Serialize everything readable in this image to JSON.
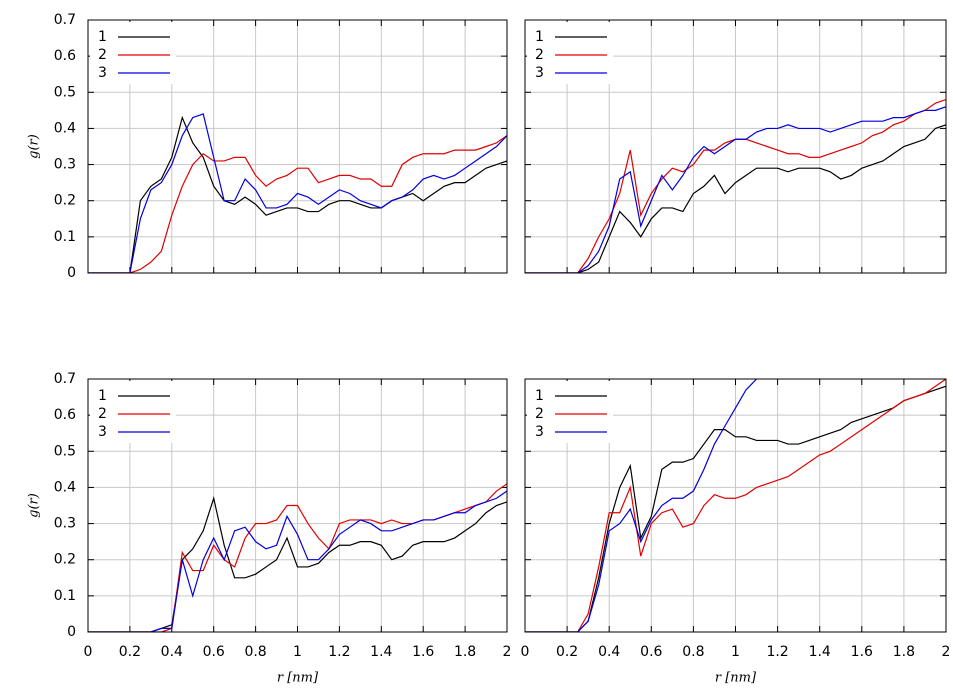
{
  "chart_data": [
    {
      "type": "line",
      "ylabel": "g(r)",
      "legend": "upper left",
      "grid": true,
      "show_xtick_labels": false,
      "show_ytick_labels": true,
      "xlim": [
        0,
        2
      ],
      "ylim": [
        0,
        0.7
      ],
      "xticks": [
        0,
        0.2,
        0.4,
        0.6,
        0.8,
        1,
        1.2,
        1.4,
        1.6,
        1.8,
        2
      ],
      "yticks": [
        0,
        0.1,
        0.2,
        0.3,
        0.4,
        0.5,
        0.6,
        0.7
      ],
      "x": [
        0,
        0.05,
        0.1,
        0.15,
        0.2,
        0.25,
        0.3,
        0.35,
        0.4,
        0.45,
        0.5,
        0.55,
        0.6,
        0.65,
        0.7,
        0.75,
        0.8,
        0.85,
        0.9,
        0.95,
        1,
        1.05,
        1.1,
        1.15,
        1.2,
        1.25,
        1.3,
        1.35,
        1.4,
        1.45,
        1.5,
        1.55,
        1.6,
        1.65,
        1.7,
        1.75,
        1.8,
        1.85,
        1.9,
        1.95,
        2
      ],
      "series": [
        {
          "name": "1",
          "color": "#000000",
          "values": [
            0,
            0,
            0,
            0,
            0,
            0.2,
            0.24,
            0.26,
            0.32,
            0.43,
            0.36,
            0.32,
            0.24,
            0.2,
            0.19,
            0.21,
            0.19,
            0.16,
            0.17,
            0.18,
            0.18,
            0.17,
            0.17,
            0.19,
            0.2,
            0.2,
            0.19,
            0.18,
            0.18,
            0.2,
            0.21,
            0.22,
            0.2,
            0.22,
            0.24,
            0.25,
            0.25,
            0.27,
            0.29,
            0.3,
            0.31
          ]
        },
        {
          "name": "2",
          "color": "#e00000",
          "values": [
            0,
            0,
            0,
            0,
            0,
            0.01,
            0.03,
            0.06,
            0.16,
            0.24,
            0.3,
            0.33,
            0.31,
            0.31,
            0.32,
            0.32,
            0.27,
            0.24,
            0.26,
            0.27,
            0.29,
            0.29,
            0.25,
            0.26,
            0.27,
            0.27,
            0.26,
            0.26,
            0.24,
            0.24,
            0.3,
            0.32,
            0.33,
            0.33,
            0.33,
            0.34,
            0.34,
            0.34,
            0.35,
            0.36,
            0.38
          ]
        },
        {
          "name": "3",
          "color": "#0000e0",
          "values": [
            0,
            0,
            0,
            0,
            0,
            0.15,
            0.23,
            0.25,
            0.3,
            0.38,
            0.43,
            0.44,
            0.32,
            0.2,
            0.2,
            0.26,
            0.23,
            0.18,
            0.18,
            0.19,
            0.22,
            0.21,
            0.19,
            0.21,
            0.23,
            0.22,
            0.2,
            0.19,
            0.18,
            0.2,
            0.21,
            0.23,
            0.26,
            0.27,
            0.26,
            0.27,
            0.29,
            0.31,
            0.33,
            0.35,
            0.38
          ]
        }
      ]
    },
    {
      "type": "line",
      "legend": "upper left",
      "grid": true,
      "show_xtick_labels": false,
      "show_ytick_labels": false,
      "xlim": [
        0,
        2
      ],
      "ylim": [
        0,
        0.7
      ],
      "xticks": [
        0,
        0.2,
        0.4,
        0.6,
        0.8,
        1,
        1.2,
        1.4,
        1.6,
        1.8,
        2
      ],
      "yticks": [
        0,
        0.1,
        0.2,
        0.3,
        0.4,
        0.5,
        0.6,
        0.7
      ],
      "x": [
        0,
        0.05,
        0.1,
        0.15,
        0.2,
        0.25,
        0.3,
        0.35,
        0.4,
        0.45,
        0.5,
        0.55,
        0.6,
        0.65,
        0.7,
        0.75,
        0.8,
        0.85,
        0.9,
        0.95,
        1,
        1.05,
        1.1,
        1.15,
        1.2,
        1.25,
        1.3,
        1.35,
        1.4,
        1.45,
        1.5,
        1.55,
        1.6,
        1.65,
        1.7,
        1.75,
        1.8,
        1.85,
        1.9,
        1.95,
        2
      ],
      "series": [
        {
          "name": "1",
          "color": "#000000",
          "values": [
            0,
            0,
            0,
            0,
            0,
            0,
            0.01,
            0.03,
            0.1,
            0.17,
            0.14,
            0.1,
            0.15,
            0.18,
            0.18,
            0.17,
            0.22,
            0.24,
            0.27,
            0.22,
            0.25,
            0.27,
            0.29,
            0.29,
            0.29,
            0.28,
            0.29,
            0.29,
            0.29,
            0.28,
            0.26,
            0.27,
            0.29,
            0.3,
            0.31,
            0.33,
            0.35,
            0.36,
            0.37,
            0.4,
            0.41
          ]
        },
        {
          "name": "2",
          "color": "#e00000",
          "values": [
            0,
            0,
            0,
            0,
            0,
            0,
            0.04,
            0.1,
            0.15,
            0.22,
            0.34,
            0.16,
            0.22,
            0.26,
            0.29,
            0.28,
            0.3,
            0.34,
            0.34,
            0.36,
            0.37,
            0.37,
            0.36,
            0.35,
            0.34,
            0.33,
            0.33,
            0.32,
            0.32,
            0.33,
            0.34,
            0.35,
            0.36,
            0.38,
            0.39,
            0.41,
            0.42,
            0.44,
            0.45,
            0.47,
            0.48
          ]
        },
        {
          "name": "3",
          "color": "#0000e0",
          "values": [
            0,
            0,
            0,
            0,
            0,
            0,
            0.02,
            0.06,
            0.13,
            0.26,
            0.28,
            0.13,
            0.2,
            0.27,
            0.23,
            0.27,
            0.32,
            0.35,
            0.33,
            0.35,
            0.37,
            0.37,
            0.39,
            0.4,
            0.4,
            0.41,
            0.4,
            0.4,
            0.4,
            0.39,
            0.4,
            0.41,
            0.42,
            0.42,
            0.42,
            0.43,
            0.43,
            0.44,
            0.45,
            0.45,
            0.46
          ]
        }
      ]
    },
    {
      "type": "line",
      "ylabel": "g(r)",
      "xlabel": "r [nm]",
      "legend": "upper left",
      "grid": true,
      "show_xtick_labels": true,
      "show_ytick_labels": true,
      "xlim": [
        0,
        2
      ],
      "ylim": [
        0,
        0.7
      ],
      "xticks": [
        0,
        0.2,
        0.4,
        0.6,
        0.8,
        1,
        1.2,
        1.4,
        1.6,
        1.8,
        2
      ],
      "yticks": [
        0,
        0.1,
        0.2,
        0.3,
        0.4,
        0.5,
        0.6,
        0.7
      ],
      "x": [
        0,
        0.05,
        0.1,
        0.15,
        0.2,
        0.25,
        0.3,
        0.35,
        0.4,
        0.45,
        0.5,
        0.55,
        0.6,
        0.65,
        0.7,
        0.75,
        0.8,
        0.85,
        0.9,
        0.95,
        1,
        1.05,
        1.1,
        1.15,
        1.2,
        1.25,
        1.3,
        1.35,
        1.4,
        1.45,
        1.5,
        1.55,
        1.6,
        1.65,
        1.7,
        1.75,
        1.8,
        1.85,
        1.9,
        1.95,
        2
      ],
      "series": [
        {
          "name": "1",
          "color": "#000000",
          "values": [
            0,
            0,
            0,
            0,
            0,
            0,
            0,
            0.01,
            0.02,
            0.2,
            0.23,
            0.28,
            0.37,
            0.24,
            0.15,
            0.15,
            0.16,
            0.18,
            0.2,
            0.26,
            0.18,
            0.18,
            0.19,
            0.22,
            0.24,
            0.24,
            0.25,
            0.25,
            0.24,
            0.2,
            0.21,
            0.24,
            0.25,
            0.25,
            0.25,
            0.26,
            0.28,
            0.3,
            0.33,
            0.35,
            0.36
          ]
        },
        {
          "name": "2",
          "color": "#e00000",
          "values": [
            0,
            0,
            0,
            0,
            0,
            0,
            0,
            0,
            0.01,
            0.22,
            0.17,
            0.17,
            0.24,
            0.2,
            0.18,
            0.26,
            0.3,
            0.3,
            0.31,
            0.35,
            0.35,
            0.3,
            0.26,
            0.23,
            0.3,
            0.31,
            0.31,
            0.31,
            0.3,
            0.31,
            0.3,
            0.3,
            0.31,
            0.31,
            0.32,
            0.33,
            0.34,
            0.35,
            0.36,
            0.39,
            0.41
          ]
        },
        {
          "name": "3",
          "color": "#0000e0",
          "values": [
            0,
            0,
            0,
            0,
            0,
            0,
            0,
            0.01,
            0.01,
            0.2,
            0.1,
            0.2,
            0.26,
            0.2,
            0.28,
            0.29,
            0.25,
            0.23,
            0.24,
            0.32,
            0.27,
            0.2,
            0.2,
            0.23,
            0.27,
            0.29,
            0.31,
            0.3,
            0.28,
            0.28,
            0.29,
            0.3,
            0.31,
            0.31,
            0.32,
            0.33,
            0.33,
            0.35,
            0.36,
            0.37,
            0.39
          ]
        }
      ]
    },
    {
      "type": "line",
      "xlabel": "r [nm]",
      "legend": "upper left",
      "grid": true,
      "show_xtick_labels": true,
      "show_ytick_labels": false,
      "xlim": [
        0,
        2
      ],
      "ylim": [
        0,
        0.7
      ],
      "xticks": [
        0,
        0.2,
        0.4,
        0.6,
        0.8,
        1,
        1.2,
        1.4,
        1.6,
        1.8,
        2
      ],
      "yticks": [
        0,
        0.1,
        0.2,
        0.3,
        0.4,
        0.5,
        0.6,
        0.7
      ],
      "x": [
        0,
        0.05,
        0.1,
        0.15,
        0.2,
        0.25,
        0.3,
        0.35,
        0.4,
        0.45,
        0.5,
        0.55,
        0.6,
        0.65,
        0.7,
        0.75,
        0.8,
        0.85,
        0.9,
        0.95,
        1,
        1.05,
        1.1,
        1.15,
        1.2,
        1.25,
        1.3,
        1.35,
        1.4,
        1.45,
        1.5,
        1.55,
        1.6,
        1.65,
        1.7,
        1.75,
        1.8,
        1.85,
        1.9,
        1.95,
        2
      ],
      "series": [
        {
          "name": "1",
          "color": "#000000",
          "values": [
            0,
            0,
            0,
            0,
            0,
            0,
            0.03,
            0.15,
            0.3,
            0.4,
            0.46,
            0.26,
            0.32,
            0.45,
            0.47,
            0.47,
            0.48,
            0.52,
            0.56,
            0.56,
            0.54,
            0.54,
            0.53,
            0.53,
            0.53,
            0.52,
            0.52,
            0.53,
            0.54,
            0.55,
            0.56,
            0.58,
            0.59,
            0.6,
            0.61,
            0.62,
            0.64,
            0.65,
            0.66,
            0.67,
            0.68
          ]
        },
        {
          "name": "2",
          "color": "#e00000",
          "values": [
            0,
            0,
            0,
            0,
            0,
            0,
            0.05,
            0.18,
            0.33,
            0.33,
            0.4,
            0.21,
            0.3,
            0.33,
            0.34,
            0.29,
            0.3,
            0.35,
            0.38,
            0.37,
            0.37,
            0.38,
            0.4,
            0.41,
            0.42,
            0.43,
            0.45,
            0.47,
            0.49,
            0.5,
            0.52,
            0.54,
            0.56,
            0.58,
            0.6,
            0.62,
            0.64,
            0.65,
            0.66,
            0.68,
            0.7
          ]
        },
        {
          "name": "3",
          "color": "#0000e0",
          "values": [
            0,
            0,
            0,
            0,
            0,
            0,
            0.03,
            0.13,
            0.28,
            0.3,
            0.34,
            0.25,
            0.31,
            0.35,
            0.37,
            0.37,
            0.39,
            0.45,
            0.52,
            0.57,
            0.62,
            0.67,
            0.7,
            null,
            null,
            null,
            null,
            null,
            null,
            null,
            null,
            null,
            null,
            null,
            null,
            null,
            null,
            null,
            null,
            null,
            null
          ]
        }
      ]
    }
  ]
}
